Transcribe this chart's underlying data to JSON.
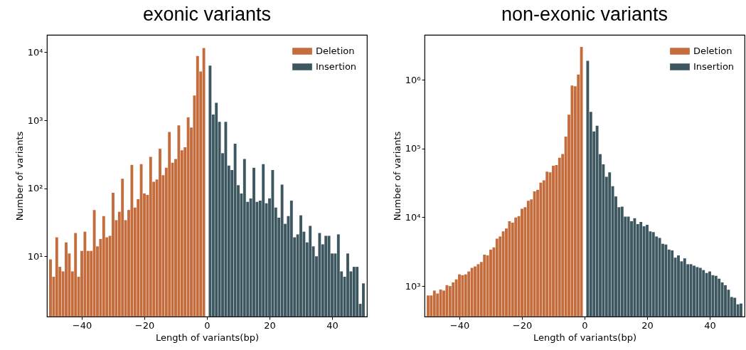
{
  "chart_data": [
    {
      "type": "bar",
      "title": "exonic variants",
      "xlabel": "Length of variants(bp)",
      "ylabel": "Number of variants",
      "log": "y",
      "legend": "top right",
      "xlim": [
        -50,
        50
      ],
      "xticks": [
        -40,
        -20,
        0,
        20,
        40
      ],
      "ylim": [
        1.3,
        18000
      ],
      "yticks": [
        {
          "value": 10,
          "label": "10¹"
        },
        {
          "value": 100,
          "label": "10²"
        },
        {
          "value": 1000,
          "label": "10³"
        },
        {
          "value": 10000,
          "label": "10⁴"
        }
      ],
      "series": [
        {
          "name": "Deletion",
          "color": "#c46c3b",
          "x": [
            -50,
            -49,
            -48,
            -47,
            -46,
            -45,
            -44,
            -43,
            -42,
            -41,
            -40,
            -39,
            -38,
            -37,
            -36,
            -35,
            -34,
            -33,
            -32,
            -31,
            -30,
            -29,
            -28,
            -27,
            -26,
            -25,
            -24,
            -23,
            -22,
            -21,
            -20,
            -19,
            -18,
            -17,
            -16,
            -15,
            -14,
            -13,
            -12,
            -11,
            -10,
            -9,
            -8,
            -7,
            -6,
            -5,
            -4,
            -3,
            -2,
            -1
          ],
          "values": [
            9,
            5,
            19,
            7,
            6,
            16,
            11,
            6,
            22,
            5,
            12,
            23,
            12,
            12,
            48,
            14,
            18,
            39,
            19,
            20,
            86,
            34,
            45,
            138,
            34,
            48,
            221,
            52,
            69,
            226,
            84,
            80,
            290,
            125,
            135,
            381,
            156,
            200,
            672,
            238,
            269,
            839,
            362,
            400,
            1100,
            780,
            2310,
            8770,
            5220,
            11500
          ]
        },
        {
          "name": "Insertion",
          "color": "#3d5760",
          "x": [
            1,
            2,
            3,
            4,
            5,
            6,
            7,
            8,
            9,
            10,
            11,
            12,
            13,
            14,
            15,
            16,
            17,
            18,
            19,
            20,
            21,
            22,
            23,
            24,
            25,
            26,
            27,
            28,
            29,
            30,
            31,
            32,
            33,
            34,
            35,
            36,
            37,
            38,
            39,
            40,
            41,
            42,
            43,
            44,
            45,
            46,
            47,
            48,
            49,
            50
          ],
          "values": [
            6360,
            1215,
            1800,
            950,
            328,
            950,
            216,
            186,
            453,
            111,
            84,
            269,
            63,
            71,
            200,
            63,
            66,
            226,
            60,
            71,
            186,
            52,
            37,
            113,
            30,
            39,
            66,
            19,
            21,
            40,
            23,
            16,
            28,
            14,
            10,
            22,
            15,
            20,
            20,
            11,
            11,
            21,
            6,
            5,
            11,
            6,
            7,
            7,
            2,
            4
          ]
        }
      ]
    },
    {
      "type": "bar",
      "title": "non-exonic variants",
      "xlabel": "Length of variants(bp)",
      "ylabel": "Number of variants",
      "log": "y",
      "legend": "top right",
      "xlim": [
        -50,
        50
      ],
      "xticks": [
        -40,
        -20,
        0,
        20,
        40
      ],
      "ylim": [
        360,
        4500000
      ],
      "yticks": [
        {
          "value": 1000,
          "label": "10³"
        },
        {
          "value": 10000,
          "label": "10⁴"
        },
        {
          "value": 100000,
          "label": "10⁵"
        },
        {
          "value": 1000000,
          "label": "10⁶"
        }
      ],
      "series": [
        {
          "name": "Deletion",
          "color": "#c46c3b",
          "x": [
            -50,
            -49,
            -48,
            -47,
            -46,
            -45,
            -44,
            -43,
            -42,
            -41,
            -40,
            -39,
            -38,
            -37,
            -36,
            -35,
            -34,
            -33,
            -32,
            -31,
            -30,
            -29,
            -28,
            -27,
            -26,
            -25,
            -24,
            -23,
            -22,
            -21,
            -20,
            -19,
            -18,
            -17,
            -16,
            -15,
            -14,
            -13,
            -12,
            -11,
            -10,
            -9,
            -8,
            -7,
            -6,
            -5,
            -4,
            -3,
            -2,
            -1
          ],
          "values": [
            730,
            730,
            860,
            780,
            890,
            860,
            1030,
            1000,
            1130,
            1250,
            1480,
            1440,
            1480,
            1630,
            1840,
            1930,
            2080,
            2240,
            2860,
            2790,
            3390,
            3650,
            4890,
            5260,
            6240,
            6880,
            8780,
            8360,
            9910,
            10400,
            13300,
            14000,
            17400,
            18200,
            23900,
            25100,
            32000,
            34400,
            46100,
            45000,
            56100,
            57500,
            73400,
            83000,
            149000,
            310000,
            822000,
            803000,
            1190000,
            3000000
          ]
        },
        {
          "name": "Insertion",
          "color": "#3d5760",
          "x": [
            1,
            2,
            3,
            4,
            5,
            6,
            7,
            8,
            9,
            10,
            11,
            12,
            13,
            14,
            15,
            16,
            17,
            18,
            19,
            20,
            21,
            22,
            23,
            24,
            25,
            26,
            27,
            28,
            29,
            30,
            31,
            32,
            33,
            34,
            35,
            36,
            37,
            38,
            39,
            40,
            41,
            42,
            43,
            44,
            45,
            46,
            47,
            48,
            49,
            50
          ],
          "values": [
            1890000,
            342000,
            177000,
            215000,
            83000,
            58900,
            38900,
            45000,
            28300,
            20100,
            14000,
            14300,
            10200,
            10200,
            8780,
            9680,
            7960,
            8570,
            7400,
            7770,
            6240,
            6090,
            5260,
            5010,
            4120,
            4020,
            3390,
            3300,
            2590,
            2790,
            2290,
            2530,
            2080,
            2080,
            1980,
            1890,
            1840,
            1710,
            1550,
            1630,
            1440,
            1410,
            1280,
            1130,
            1030,
            885,
            693,
            676,
            543,
            557
          ]
        }
      ]
    }
  ]
}
